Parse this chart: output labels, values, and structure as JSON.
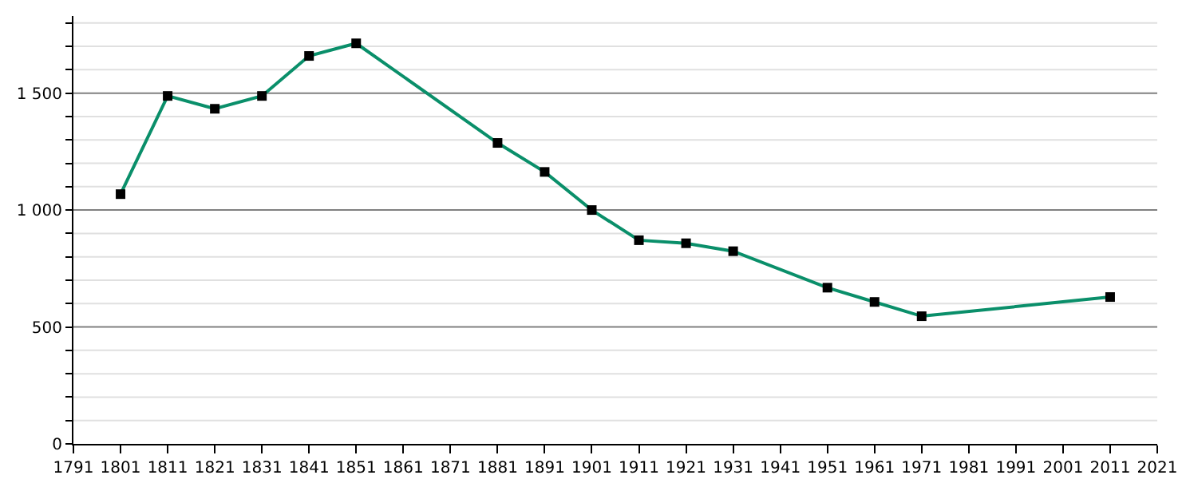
{
  "chart_data": {
    "type": "line",
    "x": [
      1801,
      1811,
      1821,
      1831,
      1841,
      1851,
      1881,
      1891,
      1901,
      1911,
      1921,
      1931,
      1951,
      1961,
      1971,
      2011
    ],
    "series": [
      {
        "color": "#0a8f6a",
        "values": [
          1068,
          1488,
          1433,
          1488,
          1659,
          1713,
          1287,
          1163,
          1000,
          871,
          858,
          824,
          668,
          607,
          546,
          628
        ]
      }
    ],
    "xlim": [
      1791,
      2021
    ],
    "xticks": [
      1791,
      1801,
      1811,
      1821,
      1831,
      1841,
      1851,
      1861,
      1871,
      1881,
      1891,
      1901,
      1911,
      1921,
      1931,
      1941,
      1951,
      1961,
      1971,
      1981,
      1991,
      2001,
      2011,
      2021
    ],
    "ylim": [
      0,
      1830
    ],
    "yticks": [
      0,
      {
        "value": 100,
        "label": null
      },
      {
        "value": 200,
        "label": null
      },
      {
        "value": 300,
        "label": null
      },
      {
        "value": 400,
        "label": null
      },
      500,
      {
        "value": 600,
        "label": null
      },
      {
        "value": 700,
        "label": null
      },
      {
        "value": 800,
        "label": null
      },
      {
        "value": 900,
        "label": null
      },
      {
        "value": 1000,
        "label": "1 000"
      },
      {
        "value": 1100,
        "label": null
      },
      {
        "value": 1200,
        "label": null
      },
      {
        "value": 1300,
        "label": null
      },
      {
        "value": 1400,
        "label": null
      },
      {
        "value": 1500,
        "label": "1 500"
      },
      {
        "value": 1600,
        "label": null
      },
      {
        "value": 1700,
        "label": null
      },
      {
        "value": 1800,
        "label": null
      }
    ],
    "grid": "y",
    "marker": "square",
    "line_style": "solid"
  }
}
